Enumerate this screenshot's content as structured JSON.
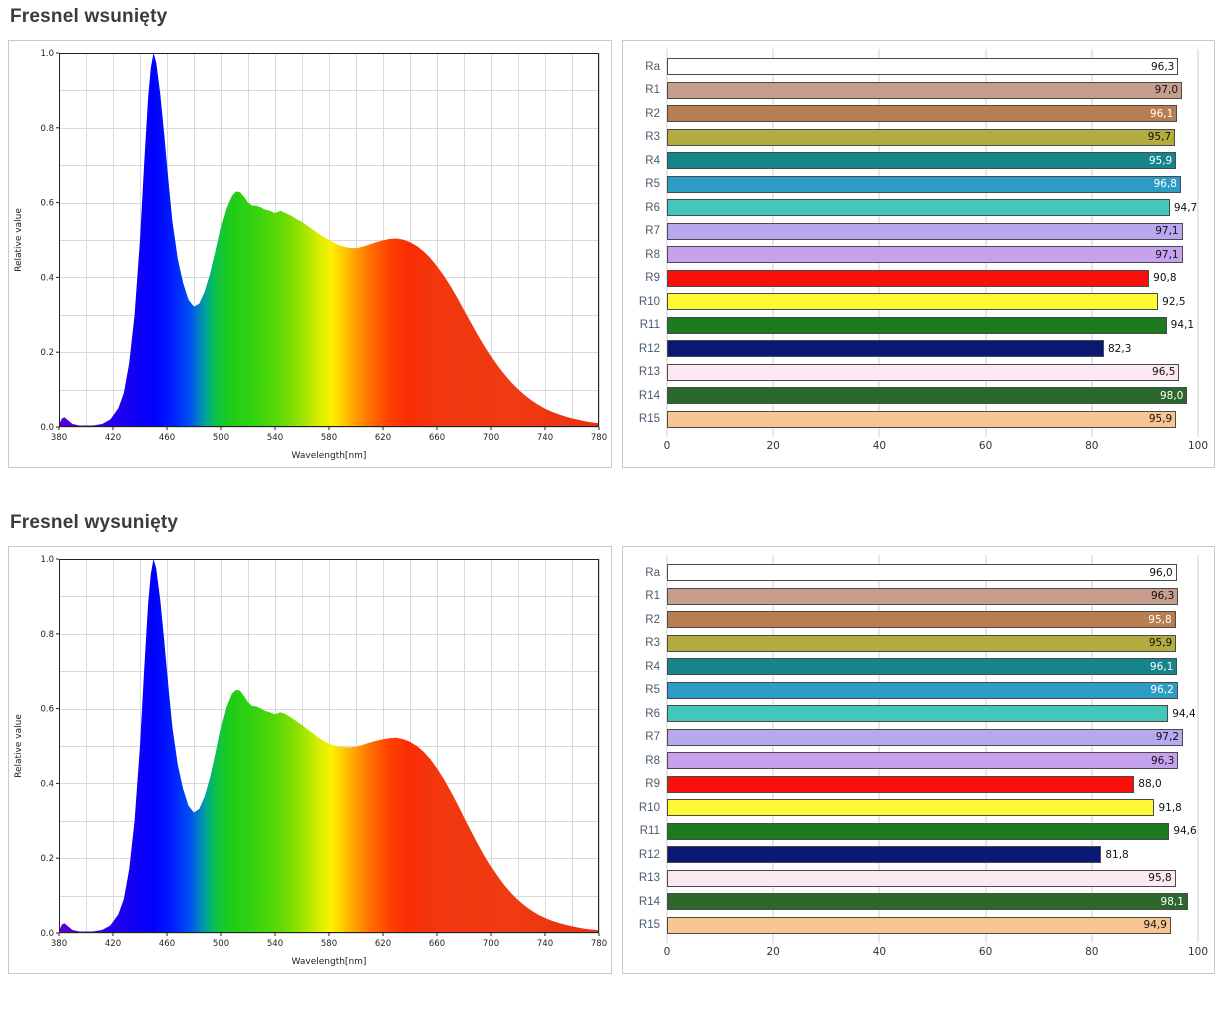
{
  "sections": [
    {
      "title": "Fresnel wsunięty"
    },
    {
      "title": "Fresnel wysunięty"
    }
  ],
  "spectrum_gradient": [
    [
      380,
      "#5a00d8"
    ],
    [
      430,
      "#1800f2"
    ],
    [
      450,
      "#0000ff"
    ],
    [
      465,
      "#0020ff"
    ],
    [
      478,
      "#0055f0"
    ],
    [
      488,
      "#00a0a0"
    ],
    [
      496,
      "#0bc24a"
    ],
    [
      508,
      "#21cc17"
    ],
    [
      525,
      "#33d30e"
    ],
    [
      545,
      "#63da04"
    ],
    [
      560,
      "#9ae300"
    ],
    [
      572,
      "#d6ed00"
    ],
    [
      582,
      "#fdf000"
    ],
    [
      591,
      "#ffc800"
    ],
    [
      601,
      "#ff9800"
    ],
    [
      612,
      "#ff6a00"
    ],
    [
      624,
      "#ff4300"
    ],
    [
      638,
      "#f92d04"
    ],
    [
      665,
      "#f2380f"
    ],
    [
      720,
      "#ef3a13"
    ],
    [
      780,
      "#e93110"
    ]
  ],
  "chart_data": [
    {
      "id": "spectrum-0",
      "type": "area",
      "xlabel": "Wavelength[nm]",
      "ylabel": "Relative value",
      "xlim": [
        380,
        780
      ],
      "ylim": [
        0,
        1.0
      ],
      "xticks": [
        380,
        420,
        460,
        500,
        540,
        580,
        620,
        660,
        700,
        740,
        780
      ],
      "yticks": [
        0.0,
        0.2,
        0.4,
        0.6,
        0.8,
        1.0
      ],
      "grid": true,
      "points": [
        [
          380,
          0.005
        ],
        [
          382,
          0.022
        ],
        [
          384,
          0.026
        ],
        [
          386,
          0.02
        ],
        [
          390,
          0.008
        ],
        [
          395,
          0.004
        ],
        [
          405,
          0.004
        ],
        [
          412,
          0.008
        ],
        [
          418,
          0.02
        ],
        [
          424,
          0.05
        ],
        [
          428,
          0.09
        ],
        [
          432,
          0.17
        ],
        [
          436,
          0.3
        ],
        [
          440,
          0.5
        ],
        [
          443,
          0.7
        ],
        [
          446,
          0.88
        ],
        [
          448,
          0.96
        ],
        [
          450,
          1.0
        ],
        [
          452,
          0.975
        ],
        [
          455,
          0.89
        ],
        [
          458,
          0.78
        ],
        [
          461,
          0.66
        ],
        [
          464,
          0.55
        ],
        [
          468,
          0.45
        ],
        [
          472,
          0.385
        ],
        [
          476,
          0.34
        ],
        [
          480,
          0.322
        ],
        [
          484,
          0.33
        ],
        [
          488,
          0.362
        ],
        [
          492,
          0.41
        ],
        [
          496,
          0.47
        ],
        [
          500,
          0.535
        ],
        [
          504,
          0.585
        ],
        [
          508,
          0.618
        ],
        [
          511,
          0.63
        ],
        [
          514,
          0.628
        ],
        [
          517,
          0.615
        ],
        [
          520,
          0.6
        ],
        [
          523,
          0.592
        ],
        [
          526,
          0.592
        ],
        [
          529,
          0.588
        ],
        [
          532,
          0.582
        ],
        [
          536,
          0.578
        ],
        [
          540,
          0.572
        ],
        [
          544,
          0.578
        ],
        [
          548,
          0.572
        ],
        [
          552,
          0.565
        ],
        [
          556,
          0.556
        ],
        [
          560,
          0.548
        ],
        [
          564,
          0.538
        ],
        [
          568,
          0.528
        ],
        [
          572,
          0.518
        ],
        [
          576,
          0.508
        ],
        [
          580,
          0.5
        ],
        [
          585,
          0.49
        ],
        [
          590,
          0.483
        ],
        [
          595,
          0.479
        ],
        [
          600,
          0.478
        ],
        [
          605,
          0.482
        ],
        [
          610,
          0.488
        ],
        [
          615,
          0.494
        ],
        [
          620,
          0.499
        ],
        [
          625,
          0.503
        ],
        [
          630,
          0.504
        ],
        [
          635,
          0.501
        ],
        [
          640,
          0.494
        ],
        [
          645,
          0.484
        ],
        [
          650,
          0.47
        ],
        [
          655,
          0.452
        ],
        [
          660,
          0.43
        ],
        [
          665,
          0.405
        ],
        [
          670,
          0.377
        ],
        [
          675,
          0.346
        ],
        [
          680,
          0.313
        ],
        [
          685,
          0.28
        ],
        [
          690,
          0.248
        ],
        [
          695,
          0.217
        ],
        [
          700,
          0.189
        ],
        [
          705,
          0.163
        ],
        [
          710,
          0.14
        ],
        [
          715,
          0.119
        ],
        [
          720,
          0.101
        ],
        [
          725,
          0.085
        ],
        [
          730,
          0.071
        ],
        [
          735,
          0.059
        ],
        [
          740,
          0.049
        ],
        [
          745,
          0.041
        ],
        [
          750,
          0.034
        ],
        [
          755,
          0.028
        ],
        [
          760,
          0.023
        ],
        [
          765,
          0.019
        ],
        [
          770,
          0.015
        ],
        [
          775,
          0.012
        ],
        [
          780,
          0.01
        ]
      ]
    },
    {
      "id": "cri-0",
      "type": "bar",
      "xlim": [
        0,
        100
      ],
      "xticks": [
        0,
        20,
        40,
        60,
        80,
        100
      ],
      "rows": [
        {
          "label": "Ra",
          "value": 96.3,
          "display": "96,3",
          "color": "#ffffff"
        },
        {
          "label": "R1",
          "value": 97.0,
          "display": "97,0",
          "color": "#c79e8e"
        },
        {
          "label": "R2",
          "value": 96.1,
          "display": "96,1",
          "color": "#b97d52"
        },
        {
          "label": "R3",
          "value": 95.7,
          "display": "95,7",
          "color": "#b2ac41"
        },
        {
          "label": "R4",
          "value": 95.9,
          "display": "95,9",
          "color": "#15858b"
        },
        {
          "label": "R5",
          "value": 96.8,
          "display": "96,8",
          "color": "#2d9cc5"
        },
        {
          "label": "R6",
          "value": 94.7,
          "display": "94,7",
          "color": "#43c7ba"
        },
        {
          "label": "R7",
          "value": 97.1,
          "display": "97,1",
          "color": "#b7a8f0"
        },
        {
          "label": "R8",
          "value": 97.1,
          "display": "97,1",
          "color": "#c5a1ee"
        },
        {
          "label": "R9",
          "value": 90.8,
          "display": "90,8",
          "color": "#fa0f0a"
        },
        {
          "label": "R10",
          "value": 92.5,
          "display": "92,5",
          "color": "#fcf834"
        },
        {
          "label": "R11",
          "value": 94.1,
          "display": "94,1",
          "color": "#1e7a1e"
        },
        {
          "label": "R12",
          "value": 82.3,
          "display": "82,3",
          "color": "#0b1873"
        },
        {
          "label": "R13",
          "value": 96.5,
          "display": "96,5",
          "color": "#fce8f2"
        },
        {
          "label": "R14",
          "value": 98.0,
          "display": "98,0",
          "color": "#2c672c"
        },
        {
          "label": "R15",
          "value": 95.9,
          "display": "95,9",
          "color": "#f7c693"
        }
      ]
    },
    {
      "id": "spectrum-1",
      "type": "area",
      "xlabel": "Wavelength[nm]",
      "ylabel": "Relative value",
      "xlim": [
        380,
        780
      ],
      "ylim": [
        0,
        1.0
      ],
      "xticks": [
        380,
        420,
        460,
        500,
        540,
        580,
        620,
        660,
        700,
        740,
        780
      ],
      "yticks": [
        0.0,
        0.2,
        0.4,
        0.6,
        0.8,
        1.0
      ],
      "grid": true,
      "points": [
        [
          380,
          0.005
        ],
        [
          382,
          0.022
        ],
        [
          384,
          0.026
        ],
        [
          386,
          0.02
        ],
        [
          390,
          0.008
        ],
        [
          395,
          0.004
        ],
        [
          405,
          0.004
        ],
        [
          412,
          0.008
        ],
        [
          418,
          0.02
        ],
        [
          424,
          0.05
        ],
        [
          428,
          0.09
        ],
        [
          432,
          0.17
        ],
        [
          436,
          0.3
        ],
        [
          440,
          0.5
        ],
        [
          443,
          0.7
        ],
        [
          446,
          0.88
        ],
        [
          448,
          0.96
        ],
        [
          450,
          1.0
        ],
        [
          452,
          0.975
        ],
        [
          455,
          0.89
        ],
        [
          458,
          0.78
        ],
        [
          461,
          0.66
        ],
        [
          464,
          0.55
        ],
        [
          468,
          0.45
        ],
        [
          472,
          0.385
        ],
        [
          476,
          0.34
        ],
        [
          480,
          0.322
        ],
        [
          484,
          0.332
        ],
        [
          488,
          0.365
        ],
        [
          492,
          0.415
        ],
        [
          496,
          0.48
        ],
        [
          500,
          0.55
        ],
        [
          504,
          0.605
        ],
        [
          508,
          0.64
        ],
        [
          511,
          0.65
        ],
        [
          514,
          0.648
        ],
        [
          517,
          0.633
        ],
        [
          520,
          0.617
        ],
        [
          523,
          0.607
        ],
        [
          526,
          0.606
        ],
        [
          529,
          0.601
        ],
        [
          532,
          0.595
        ],
        [
          536,
          0.59
        ],
        [
          540,
          0.585
        ],
        [
          544,
          0.59
        ],
        [
          548,
          0.585
        ],
        [
          552,
          0.576
        ],
        [
          556,
          0.566
        ],
        [
          560,
          0.556
        ],
        [
          564,
          0.545
        ],
        [
          568,
          0.534
        ],
        [
          572,
          0.523
        ],
        [
          576,
          0.513
        ],
        [
          580,
          0.506
        ],
        [
          585,
          0.5
        ],
        [
          590,
          0.497
        ],
        [
          595,
          0.496
        ],
        [
          600,
          0.498
        ],
        [
          605,
          0.503
        ],
        [
          610,
          0.509
        ],
        [
          615,
          0.514
        ],
        [
          620,
          0.518
        ],
        [
          625,
          0.521
        ],
        [
          630,
          0.522
        ],
        [
          635,
          0.518
        ],
        [
          640,
          0.511
        ],
        [
          645,
          0.5
        ],
        [
          650,
          0.485
        ],
        [
          655,
          0.465
        ],
        [
          660,
          0.44
        ],
        [
          665,
          0.412
        ],
        [
          670,
          0.38
        ],
        [
          675,
          0.346
        ],
        [
          680,
          0.31
        ],
        [
          685,
          0.274
        ],
        [
          690,
          0.24
        ],
        [
          695,
          0.207
        ],
        [
          700,
          0.178
        ],
        [
          705,
          0.151
        ],
        [
          710,
          0.127
        ],
        [
          715,
          0.106
        ],
        [
          720,
          0.088
        ],
        [
          725,
          0.073
        ],
        [
          730,
          0.06
        ],
        [
          735,
          0.049
        ],
        [
          740,
          0.04
        ],
        [
          745,
          0.033
        ],
        [
          750,
          0.027
        ],
        [
          755,
          0.022
        ],
        [
          760,
          0.018
        ],
        [
          765,
          0.014
        ],
        [
          770,
          0.011
        ],
        [
          775,
          0.009
        ],
        [
          780,
          0.007
        ]
      ]
    },
    {
      "id": "cri-1",
      "type": "bar",
      "xlim": [
        0,
        100
      ],
      "xticks": [
        0,
        20,
        40,
        60,
        80,
        100
      ],
      "rows": [
        {
          "label": "Ra",
          "value": 96.0,
          "display": "96,0",
          "color": "#ffffff"
        },
        {
          "label": "R1",
          "value": 96.3,
          "display": "96,3",
          "color": "#c79e8e"
        },
        {
          "label": "R2",
          "value": 95.8,
          "display": "95,8",
          "color": "#b97d52"
        },
        {
          "label": "R3",
          "value": 95.9,
          "display": "95,9",
          "color": "#b2ac41"
        },
        {
          "label": "R4",
          "value": 96.1,
          "display": "96,1",
          "color": "#15858b"
        },
        {
          "label": "R5",
          "value": 96.2,
          "display": "96,2",
          "color": "#2d9cc5"
        },
        {
          "label": "R6",
          "value": 94.4,
          "display": "94,4",
          "color": "#43c7ba"
        },
        {
          "label": "R7",
          "value": 97.2,
          "display": "97,2",
          "color": "#b7a8f0"
        },
        {
          "label": "R8",
          "value": 96.3,
          "display": "96,3",
          "color": "#c5a1ee"
        },
        {
          "label": "R9",
          "value": 88.0,
          "display": "88,0",
          "color": "#fa0f0a"
        },
        {
          "label": "R10",
          "value": 91.8,
          "display": "91,8",
          "color": "#fcf834"
        },
        {
          "label": "R11",
          "value": 94.6,
          "display": "94,6",
          "color": "#1e7a1e"
        },
        {
          "label": "R12",
          "value": 81.8,
          "display": "81,8",
          "color": "#0b1873"
        },
        {
          "label": "R13",
          "value": 95.8,
          "display": "95,8",
          "color": "#fce8f2"
        },
        {
          "label": "R14",
          "value": 98.1,
          "display": "98,1",
          "color": "#2c672c"
        },
        {
          "label": "R15",
          "value": 94.9,
          "display": "94,9",
          "color": "#f7c693"
        }
      ]
    }
  ]
}
